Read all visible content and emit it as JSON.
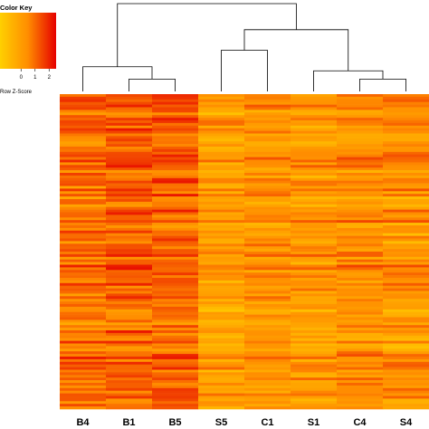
{
  "chart_data": {
    "type": "heatmap",
    "title": "",
    "xlabel": "",
    "ylabel": "",
    "columns": [
      "B4",
      "B1",
      "B5",
      "S5",
      "C1",
      "S1",
      "C4",
      "S4"
    ],
    "row_count": 120,
    "colors": {
      "low": "#ffd000",
      "mid": "#ff8c00",
      "high": "#e60000"
    },
    "color_key": {
      "title": "Color Key",
      "label": "Row Z-Score",
      "ticks": [
        "0",
        "1",
        "2"
      ],
      "tick_values": [
        0,
        1,
        2
      ],
      "range": [
        -1.5,
        2.5
      ]
    },
    "dendrogram": {
      "leaves": [
        "B4",
        "B1",
        "B5",
        "S5",
        "C1",
        "S1",
        "C4",
        "S4"
      ],
      "merges": [
        {
          "a": "B1",
          "b": "B5",
          "height": 0.9
        },
        {
          "a": "B4",
          "b": "B1+B5",
          "height": 1.8
        },
        {
          "a": "C4",
          "b": "S4",
          "height": 0.9
        },
        {
          "a": "S1",
          "b": "C4+S4",
          "height": 1.5
        },
        {
          "a": "S5",
          "b": "C1",
          "height": 3.0
        },
        {
          "a": "S5+C1",
          "b": "S1+C4+S4",
          "height": 4.5
        },
        {
          "a": "B4+B1+B5",
          "b": "S5+C1+S1+C4+S4",
          "height": 6.4
        }
      ]
    }
  }
}
